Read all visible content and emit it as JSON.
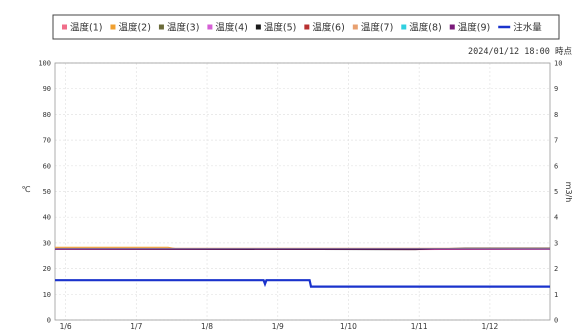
{
  "timestamp": "2024/01/12 18:00 時点",
  "chart_data": {
    "type": "line",
    "legend_position": "top",
    "grid": true,
    "y_left": {
      "label": "℃",
      "min": 0,
      "max": 100,
      "ticks": [
        0,
        10,
        20,
        30,
        40,
        50,
        60,
        70,
        80,
        90,
        100
      ]
    },
    "y_right": {
      "label": "m3/h",
      "min": 0,
      "max": 10,
      "ticks": [
        0,
        1,
        2,
        3,
        4,
        5,
        6,
        7,
        8,
        9,
        10
      ]
    },
    "x": {
      "min": 0,
      "max": 7,
      "ticks": [
        {
          "v": 0.15,
          "label": "1/6"
        },
        {
          "v": 1.15,
          "label": "1/7"
        },
        {
          "v": 2.15,
          "label": "1/8"
        },
        {
          "v": 3.15,
          "label": "1/9"
        },
        {
          "v": 4.15,
          "label": "1/10"
        },
        {
          "v": 5.15,
          "label": "1/11"
        },
        {
          "v": 6.15,
          "label": "1/12"
        }
      ]
    },
    "series": [
      {
        "name": "温度(1)",
        "color": "#f06e8a",
        "axis": "left",
        "points": [
          [
            0,
            27.6
          ],
          [
            2,
            27.6
          ],
          [
            3,
            27.5
          ],
          [
            4,
            27.5
          ],
          [
            5,
            27.4
          ],
          [
            7,
            27.6
          ]
        ]
      },
      {
        "name": "温度(2)",
        "color": "#f0a030",
        "axis": "left",
        "points": [
          [
            0,
            28.3
          ],
          [
            1.6,
            28.3
          ],
          [
            1.7,
            27.8
          ],
          [
            7,
            27.8
          ]
        ]
      },
      {
        "name": "温度(3)",
        "color": "#6b6b3a",
        "axis": "left",
        "points": [
          [
            0,
            27.7
          ],
          [
            7,
            27.8
          ]
        ]
      },
      {
        "name": "温度(4)",
        "color": "#d55fd5",
        "axis": "left",
        "points": [
          [
            0,
            27.5
          ],
          [
            7,
            27.6
          ]
        ]
      },
      {
        "name": "温度(5)",
        "color": "#1a1a1a",
        "axis": "left",
        "points": [
          [
            0,
            27.6
          ],
          [
            4.9,
            27.4
          ],
          [
            5.1,
            27.4
          ],
          [
            5.8,
            28.0
          ],
          [
            7,
            28.0
          ]
        ]
      },
      {
        "name": "温度(6)",
        "color": "#b83030",
        "axis": "left",
        "points": [
          [
            0,
            27.8
          ],
          [
            7,
            27.8
          ]
        ]
      },
      {
        "name": "温度(7)",
        "color": "#e8a070",
        "axis": "left",
        "points": [
          [
            0,
            27.9
          ],
          [
            7,
            27.9
          ]
        ]
      },
      {
        "name": "温度(8)",
        "color": "#30d0e0",
        "axis": "left",
        "points": [
          [
            0,
            27.7
          ],
          [
            7,
            27.7
          ]
        ]
      },
      {
        "name": "温度(9)",
        "color": "#7a1a7a",
        "axis": "left",
        "points": [
          [
            0,
            27.6
          ],
          [
            7,
            27.6
          ]
        ]
      },
      {
        "name": "注水量",
        "color": "#1a33cc",
        "axis": "right",
        "width": 2.2,
        "points": [
          [
            0,
            1.55
          ],
          [
            2.95,
            1.55
          ],
          [
            2.97,
            1.4
          ],
          [
            2.99,
            1.55
          ],
          [
            3.6,
            1.55
          ],
          [
            3.62,
            1.3
          ],
          [
            7,
            1.3
          ]
        ]
      }
    ]
  }
}
